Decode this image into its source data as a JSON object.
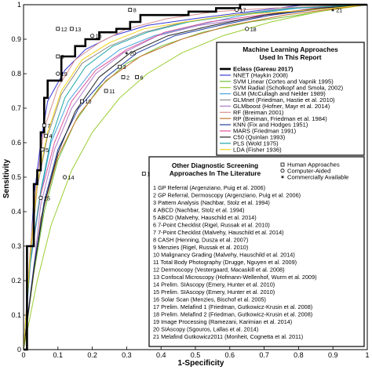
{
  "chart_data": {
    "type": "line",
    "xlabel": "1-Specificity",
    "ylabel": "Sensitivity",
    "xlim": [
      0,
      1
    ],
    "ylim": [
      0,
      1
    ],
    "xticks": [
      "0",
      "0.1",
      "0.2",
      "0.3",
      "0.4",
      "0.5",
      "0.6",
      "0.7",
      "0.8",
      "0.9",
      "1"
    ],
    "yticks": [
      "0",
      "0.1",
      "0.2",
      "0.3",
      "0.4",
      "0.5",
      "0.6",
      "0.7",
      "0.8",
      "0.9",
      "1"
    ],
    "grid": false,
    "ml_legend": {
      "title_lines": [
        "Machine Learning Approaches",
        "Used In This Report"
      ],
      "placement": "top-right"
    },
    "series": [
      {
        "name": "Eclass (Gareau 2017)",
        "color": "#000000",
        "bold": true,
        "x": [
          0,
          0.01,
          0.01,
          0.03,
          0.03,
          0.04,
          0.04,
          0.05,
          0.05,
          0.06,
          0.06,
          0.07,
          0.07,
          0.11,
          0.11,
          0.15,
          0.15,
          0.18,
          0.18,
          0.22,
          0.22,
          0.27,
          0.27,
          0.31,
          0.31,
          0.34,
          0.34,
          0.48,
          0.48,
          0.56,
          0.56,
          0.63,
          0.63,
          0.66,
          0.66,
          1
        ],
        "y": [
          0,
          0,
          0.3,
          0.3,
          0.48,
          0.48,
          0.52,
          0.52,
          0.63,
          0.63,
          0.73,
          0.73,
          0.78,
          0.78,
          0.85,
          0.85,
          0.88,
          0.88,
          0.9,
          0.9,
          0.92,
          0.92,
          0.93,
          0.93,
          0.95,
          0.95,
          0.97,
          0.97,
          0.98,
          0.98,
          0.99,
          0.99,
          1.0,
          1.0,
          1.0,
          1.0
        ]
      },
      {
        "name": "NNET (Haykin 2008)",
        "color": "#3b3bd6",
        "x": [
          0,
          0.02,
          0.03,
          0.05,
          0.07,
          0.12,
          0.18,
          0.26,
          0.36,
          0.5,
          0.66,
          0.82,
          1
        ],
        "y": [
          0,
          0.28,
          0.44,
          0.6,
          0.72,
          0.81,
          0.87,
          0.91,
          0.94,
          0.96,
          0.98,
          1.0,
          1.0
        ]
      },
      {
        "name": "SVM Linear (Cortes and Vapnik 1995)",
        "color": "#6fbf3a",
        "x": [
          0,
          0.03,
          0.06,
          0.1,
          0.15,
          0.22,
          0.3,
          0.4,
          0.52,
          0.66,
          0.8,
          0.92,
          1
        ],
        "y": [
          0,
          0.22,
          0.4,
          0.55,
          0.66,
          0.76,
          0.83,
          0.88,
          0.92,
          0.95,
          0.97,
          0.99,
          1.0
        ]
      },
      {
        "name": "SVM Radial (Scholkopf and Smola, 2002)",
        "color": "#9acd32",
        "x": [
          0,
          0.04,
          0.08,
          0.14,
          0.2,
          0.28,
          0.36,
          0.46,
          0.58,
          0.72,
          0.86,
          1
        ],
        "y": [
          0,
          0.2,
          0.36,
          0.52,
          0.63,
          0.73,
          0.8,
          0.86,
          0.91,
          0.95,
          0.98,
          1.0
        ]
      },
      {
        "name": "GLM (McCullagh and Nelder 1989)",
        "color": "#4aa3df",
        "x": [
          0,
          0.02,
          0.05,
          0.08,
          0.13,
          0.2,
          0.28,
          0.38,
          0.5,
          0.64,
          0.8,
          1
        ],
        "y": [
          0,
          0.25,
          0.45,
          0.6,
          0.72,
          0.81,
          0.87,
          0.91,
          0.94,
          0.97,
          0.99,
          1.0
        ]
      },
      {
        "name": "GLMnet (Friedman, Hastie et al. 2010)",
        "color": "#8a8a8a",
        "x": [
          0,
          0.02,
          0.04,
          0.07,
          0.11,
          0.17,
          0.25,
          0.35,
          0.47,
          0.61,
          0.77,
          1
        ],
        "y": [
          0,
          0.27,
          0.47,
          0.62,
          0.74,
          0.83,
          0.88,
          0.92,
          0.95,
          0.97,
          0.99,
          1.0
        ]
      },
      {
        "name": "GLMboost (Hofner, Mayr et al. 2014)",
        "color": "#b07cc6",
        "x": [
          0,
          0.03,
          0.05,
          0.09,
          0.14,
          0.21,
          0.29,
          0.39,
          0.51,
          0.65,
          0.8,
          1
        ],
        "y": [
          0,
          0.24,
          0.42,
          0.58,
          0.7,
          0.8,
          0.86,
          0.91,
          0.94,
          0.96,
          0.98,
          1.0
        ]
      },
      {
        "name": "RF (Breiman 2001)",
        "color": "#d98f8f",
        "x": [
          0,
          0.02,
          0.04,
          0.06,
          0.1,
          0.15,
          0.22,
          0.3,
          0.42,
          0.56,
          0.72,
          1
        ],
        "y": [
          0,
          0.3,
          0.5,
          0.64,
          0.76,
          0.84,
          0.89,
          0.93,
          0.96,
          0.98,
          0.99,
          1.0
        ]
      },
      {
        "name": "RP (Breiman, Friedman et al. 1984)",
        "color": "#c87533",
        "x": [
          0,
          0.05,
          0.1,
          0.16,
          0.24,
          0.34,
          0.46,
          0.6,
          0.76,
          1
        ],
        "y": [
          0,
          0.38,
          0.56,
          0.68,
          0.78,
          0.85,
          0.9,
          0.94,
          0.97,
          1.0
        ]
      },
      {
        "name": "KNN (Fix and Hodges 1951)",
        "color": "#1f3f9f",
        "x": [
          0,
          0.03,
          0.06,
          0.1,
          0.16,
          0.24,
          0.33,
          0.44,
          0.57,
          0.72,
          0.88,
          1
        ],
        "y": [
          0,
          0.24,
          0.43,
          0.58,
          0.7,
          0.79,
          0.86,
          0.91,
          0.94,
          0.97,
          0.99,
          1.0
        ]
      },
      {
        "name": "MARS (Friedman 1991)",
        "color": "#e0559a",
        "x": [
          0,
          0.02,
          0.05,
          0.09,
          0.14,
          0.21,
          0.3,
          0.41,
          0.54,
          0.69,
          0.85,
          1
        ],
        "y": [
          0,
          0.26,
          0.45,
          0.6,
          0.72,
          0.81,
          0.87,
          0.92,
          0.95,
          0.97,
          0.99,
          1.0
        ]
      },
      {
        "name": "C50 (Quinlan 1993)",
        "color": "#222222",
        "x": [
          0,
          0.03,
          0.06,
          0.1,
          0.15,
          0.22,
          0.31,
          0.42,
          0.55,
          0.7,
          0.86,
          1
        ],
        "y": [
          0,
          0.23,
          0.42,
          0.57,
          0.69,
          0.79,
          0.86,
          0.91,
          0.94,
          0.97,
          0.99,
          1.0
        ]
      },
      {
        "name": "PLS (Wold 1975)",
        "color": "#1fa5a5",
        "x": [
          0,
          0.02,
          0.05,
          0.08,
          0.12,
          0.18,
          0.26,
          0.36,
          0.48,
          0.62,
          0.78,
          1
        ],
        "y": [
          0,
          0.26,
          0.46,
          0.61,
          0.73,
          0.82,
          0.88,
          0.92,
          0.95,
          0.97,
          0.99,
          1.0
        ]
      },
      {
        "name": "LDA (Fisher 1936)",
        "color": "#f2d21c",
        "x": [
          0,
          0.02,
          0.04,
          0.07,
          0.11,
          0.17,
          0.25,
          0.35,
          0.47,
          0.61,
          0.77,
          0.9,
          1
        ],
        "y": [
          0,
          0.28,
          0.48,
          0.63,
          0.75,
          0.84,
          0.89,
          0.93,
          0.95,
          0.97,
          0.98,
          0.99,
          1.0
        ]
      }
    ],
    "lit_legend": {
      "title_lines": [
        "Other Diagnostic Screening",
        "Approaches In The Literature"
      ],
      "marker_key": [
        {
          "marker": "square",
          "label": "Human Approaches"
        },
        {
          "marker": "circle",
          "label": "Computer-Aided"
        },
        {
          "marker": "star",
          "label": "Commercially Available"
        }
      ],
      "items": [
        "1   GP Referral (Argenziano, Puig et al. 2006)",
        "2   GP Referral, Dermoscopy (Argenziano, Puig et al. 2006)",
        "3   Pattern Analysis (Nachbar, Stolz et al. 1994)",
        "4   ABCD (Nachbar, Stolz et al. 1994)",
        "5   ABCD (Malvehy, Hauschild et al. 2014)",
        "6   7-Point Checklist (Rigel, Russak et al. 2010)",
        "7   7-Point Checklist (Malvehy, Hauschild et al. 2014)",
        "8   CASH (Henning, Dusza et al. 2007)",
        "9   Menzies (Rigel, Russak et al. 2010)",
        "10  Malignancy Grading (Malvehy, Hauschild et al. 2014)",
        "11  Total Body Photography (Drugge, Nguyen et al. 2009)",
        "12  Dermoscopy (Vestergaard, Macaskill et al. 2008)",
        "13  Confocal Microscopy (Hofmann-Wellenhof, Wurm et al. 2009)",
        "14  Prelim. SIAscopy (Emery, Hunter et al. 2010)",
        "15  Prelim. SIAscopy (Emery, Hunter et al. 2010)",
        "16  Solar Scan (Menzies, Bischof et al. 2005)",
        "17  Prelim. Melafind 1 (Friedman, Gutkowicz-Krusin et al. 2008)",
        "18  Prelim. Melafind 2 (Friedman, Gutkowicz-Krusin et al. 2008)",
        "19  Image Processing (Ramezani, Karimian et al. 2014)",
        "20  SIAscopy (Sgouros, Lallas et al. 2014)",
        "21  Melafind Gutkowicz2011 (Monheit, Cognetta et al. 2011)"
      ]
    },
    "points": [
      {
        "label": "1",
        "marker": "square",
        "x": 0.35,
        "y": 0.51
      },
      {
        "label": "2",
        "marker": "square",
        "x": 0.29,
        "y": 0.79
      },
      {
        "label": "3",
        "marker": "square",
        "x": 0.28,
        "y": 0.82
      },
      {
        "label": "4",
        "marker": "square",
        "x": 0.065,
        "y": 0.62
      },
      {
        "label": "5",
        "marker": "square",
        "x": 0.055,
        "y": 0.58
      },
      {
        "label": "6",
        "marker": "square",
        "x": 0.33,
        "y": 0.79
      },
      {
        "label": "7",
        "marker": "square",
        "x": 0.06,
        "y": 0.65
      },
      {
        "label": "8",
        "marker": "square",
        "x": 0.31,
        "y": 0.985
      },
      {
        "label": "9",
        "marker": "square",
        "x": 0.1,
        "y": 0.85
      },
      {
        "label": "10",
        "marker": "square",
        "x": 0.17,
        "y": 0.72
      },
      {
        "label": "11",
        "marker": "square",
        "x": 0.24,
        "y": 0.75
      },
      {
        "label": "12",
        "marker": "square",
        "x": 0.1,
        "y": 0.93
      },
      {
        "label": "13",
        "marker": "square",
        "x": 0.14,
        "y": 0.93
      },
      {
        "label": "14",
        "marker": "circle",
        "x": 0.12,
        "y": 0.5
      },
      {
        "label": "15",
        "marker": "circle",
        "x": 0.05,
        "y": 0.44
      },
      {
        "label": "16",
        "marker": "circle",
        "x": 0.2,
        "y": 0.91
      },
      {
        "label": "17",
        "marker": "circle",
        "x": 0.62,
        "y": 0.985
      },
      {
        "label": "18",
        "marker": "circle",
        "x": 0.65,
        "y": 0.93
      },
      {
        "label": "19",
        "marker": "circle",
        "x": 0.1,
        "y": 0.8
      },
      {
        "label": "20",
        "marker": "star",
        "x": 0.3,
        "y": 0.86
      },
      {
        "label": "21",
        "marker": "star",
        "x": 0.9,
        "y": 0.985
      }
    ]
  }
}
